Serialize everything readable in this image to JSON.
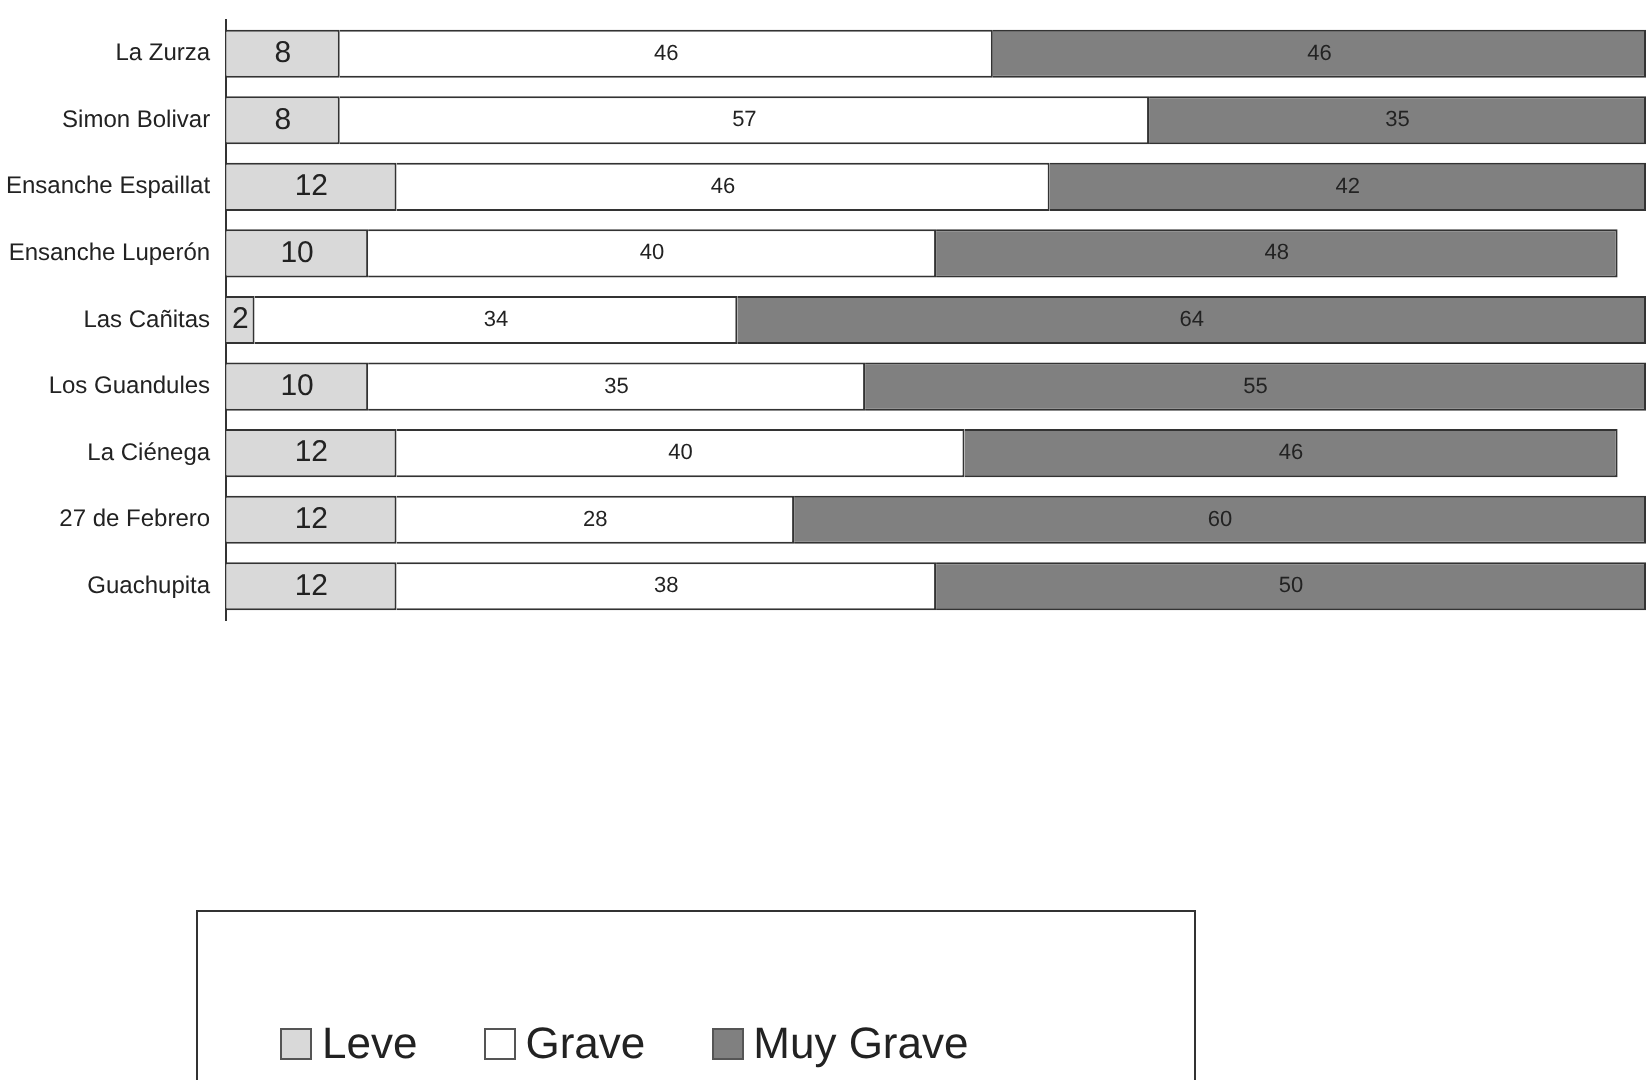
{
  "chart_data": {
    "type": "bar",
    "orientation": "horizontal",
    "stacked": true,
    "data_labels": true,
    "grid": false,
    "legend": "bottom",
    "tick_labels": "y",
    "categories": [
      "La Zurza",
      "Simon Bolivar",
      "Ensanche Espaillat",
      "Ensanche Luperón",
      "Las Cañitas",
      "Los Guandules",
      "La Ciénega",
      "27 de Febrero",
      "Guachupita"
    ],
    "series": [
      {
        "name": "Leve",
        "color": "#d9d9d9",
        "values": [
          8,
          8,
          12,
          10,
          2,
          10,
          12,
          12,
          12
        ]
      },
      {
        "name": "Grave",
        "color": "#ffffff",
        "values": [
          46,
          57,
          46,
          40,
          34,
          35,
          40,
          28,
          38
        ]
      },
      {
        "name": "Muy Grave",
        "color": "#808080",
        "values": [
          46,
          35,
          42,
          48,
          64,
          55,
          46,
          60,
          50
        ]
      }
    ]
  }
}
